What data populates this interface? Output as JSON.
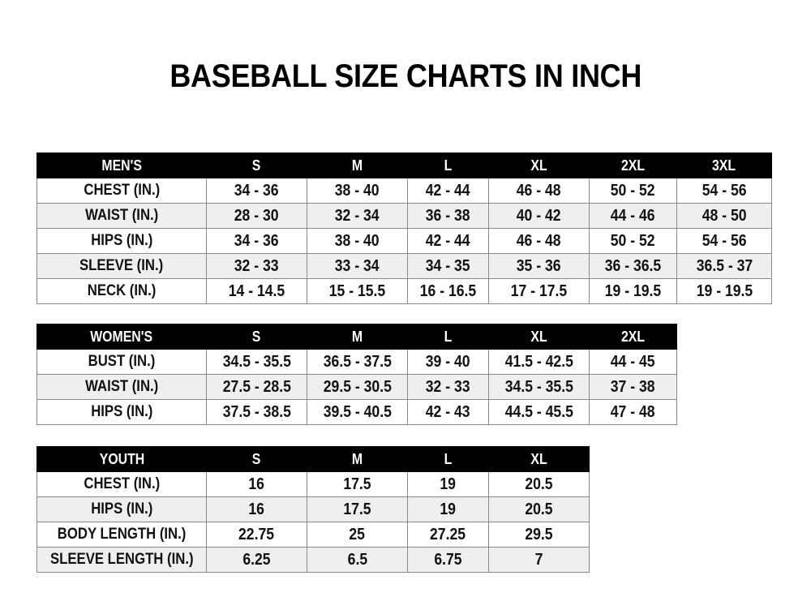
{
  "title": "BASEBALL SIZE CHARTS IN INCH",
  "tables": [
    {
      "id": "mens",
      "headers": [
        "MEN'S",
        "S",
        "M",
        "L",
        "XL",
        "2XL",
        "3XL"
      ],
      "rows": [
        [
          "CHEST (IN.)",
          "34 - 36",
          "38 - 40",
          "42 - 44",
          "46 - 48",
          "50 - 52",
          "54 - 56"
        ],
        [
          "WAIST (IN.)",
          "28 - 30",
          "32 - 34",
          "36 - 38",
          "40 - 42",
          "44 - 46",
          "48 - 50"
        ],
        [
          "HIPS (IN.)",
          "34 - 36",
          "38 - 40",
          "42 - 44",
          "46 - 48",
          "50 - 52",
          "54 - 56"
        ],
        [
          "SLEEVE (IN.)",
          "32 - 33",
          "33 - 34",
          "34 - 35",
          "35 - 36",
          "36 - 36.5",
          "36.5 - 37"
        ],
        [
          "NECK (IN.)",
          "14 - 14.5",
          "15 - 15.5",
          "16 - 16.5",
          "17 - 17.5",
          "19 - 19.5",
          "19 - 19.5"
        ]
      ]
    },
    {
      "id": "womens",
      "headers": [
        "WOMEN'S",
        "S",
        "M",
        "L",
        "XL",
        "2XL"
      ],
      "rows": [
        [
          "BUST (IN.)",
          "34.5 - 35.5",
          "36.5 - 37.5",
          "39 - 40",
          "41.5 - 42.5",
          "44 - 45"
        ],
        [
          "WAIST (IN.)",
          "27.5 - 28.5",
          "29.5 - 30.5",
          "32 - 33",
          "34.5 - 35.5",
          "37 - 38"
        ],
        [
          "HIPS (IN.)",
          "37.5 - 38.5",
          "39.5 - 40.5",
          "42 - 43",
          "44.5 - 45.5",
          "47 - 48"
        ]
      ]
    },
    {
      "id": "youth",
      "headers": [
        "YOUTH",
        "S",
        "M",
        "L",
        "XL"
      ],
      "rows": [
        [
          "CHEST (IN.)",
          "16",
          "17.5",
          "19",
          "20.5"
        ],
        [
          "HIPS (IN.)",
          "16",
          "17.5",
          "19",
          "20.5"
        ],
        [
          "BODY LENGTH (IN.)",
          "22.75",
          "25",
          "27.25",
          "29.5"
        ],
        [
          "SLEEVE LENGTH (IN.)",
          "6.25",
          "6.5",
          "6.75",
          "7"
        ]
      ]
    }
  ]
}
